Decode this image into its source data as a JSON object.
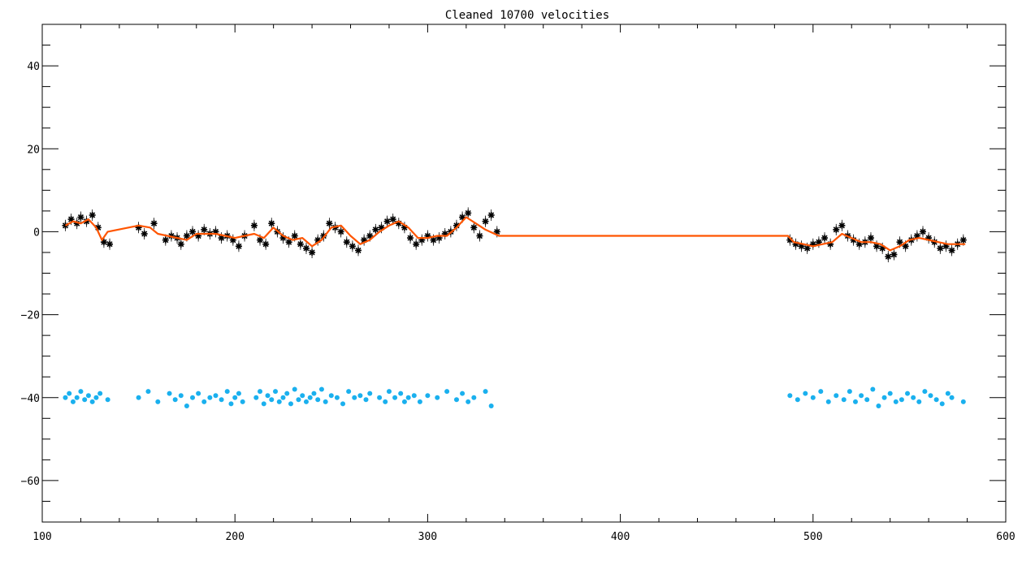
{
  "chart_data": {
    "type": "scatter",
    "title": "Cleaned 10700 velocities",
    "xlabel": "",
    "ylabel": "",
    "xlim": [
      100,
      600
    ],
    "ylim": [
      -70,
      50
    ],
    "x_ticks": [
      100,
      200,
      300,
      400,
      500,
      600
    ],
    "y_ticks": [
      40,
      20,
      0,
      -20,
      -40,
      -60
    ],
    "x_tick_labels": [
      "100",
      "200",
      "300",
      "400",
      "500",
      "600"
    ],
    "y_tick_labels": [
      "40",
      "20",
      "0",
      "−20",
      "−40",
      "−60"
    ],
    "grid": false,
    "colors": {
      "velocity": "#000000",
      "smoothed": "#ff5500",
      "residual": "#1ab0ee"
    },
    "series": [
      {
        "kind": "asterisk-points",
        "x": [
          112,
          115,
          118,
          120,
          123,
          126,
          129,
          132,
          135,
          150,
          153,
          158,
          164,
          167,
          170,
          172,
          175,
          178,
          181,
          184,
          187,
          190,
          193,
          196,
          199,
          202,
          205,
          210,
          213,
          216,
          219,
          222,
          225,
          228,
          231,
          234,
          237,
          240,
          243,
          246,
          249,
          252,
          255,
          258,
          261,
          264,
          267,
          270,
          273,
          276,
          279,
          282,
          285,
          288,
          291,
          294,
          297,
          300,
          303,
          306,
          309,
          312,
          315,
          318,
          321,
          324,
          327,
          330,
          333,
          336,
          488,
          491,
          494,
          497,
          500,
          503,
          506,
          509,
          512,
          515,
          518,
          521,
          524,
          527,
          530,
          533,
          536,
          539,
          542,
          545,
          548,
          551,
          554,
          557,
          560,
          563,
          566,
          569,
          572,
          575,
          578
        ],
        "y": [
          1.5,
          3.0,
          2.0,
          3.5,
          2.5,
          4.0,
          1.0,
          -2.5,
          -3.0,
          1.0,
          -0.5,
          2.0,
          -2.0,
          -1.0,
          -1.5,
          -3.0,
          -1.0,
          0.0,
          -1.0,
          0.5,
          -0.5,
          0.0,
          -1.5,
          -1.0,
          -2.0,
          -3.5,
          -1.0,
          1.5,
          -2.0,
          -3.0,
          2.0,
          0.0,
          -1.5,
          -2.5,
          -1.0,
          -3.0,
          -4.0,
          -5.0,
          -2.0,
          -1.0,
          2.0,
          1.0,
          0.0,
          -2.5,
          -3.5,
          -4.5,
          -2.0,
          -1.0,
          0.5,
          1.0,
          2.5,
          3.0,
          2.0,
          1.0,
          -1.5,
          -3.0,
          -2.0,
          -1.0,
          -2.0,
          -1.5,
          -0.5,
          0.0,
          1.5,
          3.5,
          4.5,
          1.0,
          -1.0,
          2.5,
          4.0,
          0.0,
          -2.0,
          -3.0,
          -3.5,
          -4.0,
          -3.0,
          -2.5,
          -1.5,
          -3.0,
          0.5,
          1.5,
          -1.0,
          -2.0,
          -3.0,
          -2.5,
          -1.5,
          -3.5,
          -4.0,
          -6.0,
          -5.5,
          -2.5,
          -3.5,
          -2.0,
          -1.0,
          0.0,
          -1.5,
          -2.5,
          -4.0,
          -3.5,
          -4.5,
          -3.0,
          -2.0
        ]
      },
      {
        "kind": "smoothed-line",
        "x": [
          112,
          116,
          120,
          124,
          128,
          131,
          134,
          150,
          156,
          160,
          165,
          170,
          175,
          180,
          185,
          190,
          195,
          200,
          205,
          210,
          215,
          220,
          225,
          230,
          235,
          240,
          245,
          250,
          255,
          260,
          265,
          270,
          275,
          280,
          285,
          290,
          295,
          300,
          305,
          310,
          315,
          320,
          325,
          330,
          337,
          487,
          490,
          495,
          500,
          505,
          510,
          515,
          520,
          525,
          530,
          535,
          540,
          545,
          550,
          555,
          560,
          565,
          570,
          575,
          579
        ],
        "y": [
          1.5,
          2.5,
          2.0,
          3.0,
          1.0,
          -2.0,
          0.0,
          1.5,
          1.0,
          -0.5,
          -1.0,
          -1.5,
          -2.0,
          -0.5,
          -0.5,
          -0.5,
          -1.0,
          -1.5,
          -1.0,
          -0.5,
          -1.5,
          1.0,
          -1.0,
          -2.0,
          -1.5,
          -3.5,
          -2.0,
          1.0,
          1.5,
          -1.0,
          -3.0,
          -2.0,
          0.0,
          1.5,
          2.5,
          1.0,
          -1.5,
          -1.5,
          -1.0,
          -1.0,
          1.0,
          3.5,
          2.0,
          0.5,
          -1.0,
          -1.0,
          -2.5,
          -3.0,
          -3.5,
          -3.0,
          -2.5,
          -0.5,
          -1.5,
          -2.5,
          -2.5,
          -3.0,
          -4.5,
          -3.5,
          -2.0,
          -1.5,
          -2.0,
          -2.5,
          -3.0,
          -3.0,
          -3.0
        ]
      },
      {
        "kind": "residual-dots",
        "x": [
          112,
          114,
          116,
          118,
          120,
          122,
          124,
          126,
          128,
          130,
          134,
          150,
          155,
          160,
          166,
          169,
          172,
          175,
          178,
          181,
          184,
          187,
          190,
          193,
          196,
          198,
          200,
          202,
          204,
          211,
          213,
          215,
          217,
          219,
          221,
          223,
          225,
          227,
          229,
          231,
          233,
          235,
          237,
          239,
          241,
          243,
          245,
          247,
          250,
          253,
          256,
          259,
          262,
          265,
          268,
          270,
          275,
          278,
          280,
          283,
          286,
          288,
          290,
          293,
          296,
          300,
          305,
          310,
          315,
          318,
          321,
          324,
          330,
          333,
          488,
          492,
          496,
          500,
          504,
          508,
          512,
          516,
          519,
          522,
          525,
          528,
          531,
          534,
          537,
          540,
          543,
          546,
          549,
          552,
          555,
          558,
          561,
          564,
          567,
          570,
          572,
          578
        ],
        "y": [
          -40,
          -39,
          -41,
          -40,
          -38.5,
          -40.5,
          -39.5,
          -41,
          -40,
          -39,
          -40.5,
          -40,
          -38.5,
          -41,
          -39,
          -40.5,
          -39.5,
          -42,
          -40,
          -39,
          -41,
          -40,
          -39.5,
          -40.5,
          -38.5,
          -41.5,
          -40,
          -39,
          -41,
          -40,
          -38.5,
          -41.5,
          -39.5,
          -40.5,
          -38.5,
          -41,
          -40,
          -39,
          -41.5,
          -38,
          -40.5,
          -39.5,
          -41,
          -40,
          -39,
          -40.5,
          -38,
          -41,
          -39.5,
          -40,
          -41.5,
          -38.5,
          -40,
          -39.5,
          -40.5,
          -39,
          -40,
          -41,
          -38.5,
          -40,
          -39,
          -41,
          -40,
          -39.5,
          -41,
          -39.5,
          -40,
          -38.5,
          -40.5,
          -39,
          -41,
          -40,
          -38.5,
          -42,
          -39.5,
          -40.5,
          -39,
          -40,
          -38.5,
          -41,
          -39.5,
          -40.5,
          -38.5,
          -41,
          -39.5,
          -40.5,
          -38,
          -42,
          -40,
          -39,
          -41,
          -40.5,
          -39,
          -40,
          -41,
          -38.5,
          -39.5,
          -40.5,
          -41.5,
          -39,
          -40,
          -41
        ]
      }
    ]
  }
}
